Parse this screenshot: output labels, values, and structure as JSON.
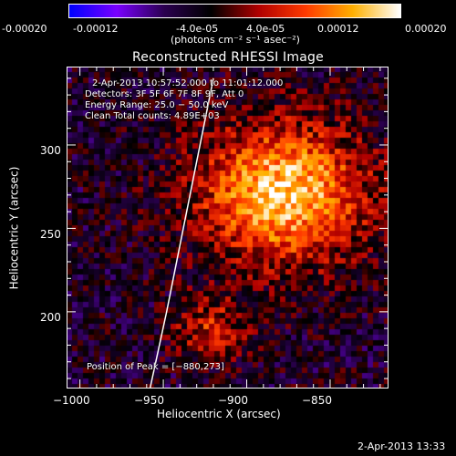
{
  "colorbar": {
    "ticks": [
      "-0.00020",
      "-0.00012",
      "-4.0e-05",
      "4.0e-05",
      "0.00012",
      "0.00020"
    ],
    "units_label": "(photons cm⁻² s⁻¹ asec⁻²)",
    "colors": [
      "#0000ff",
      "#7a00ff",
      "#2b0050",
      "#000000",
      "#b00000",
      "#ff3a00",
      "#ffb000",
      "#ffffff"
    ]
  },
  "plot": {
    "title": "Reconstructed RHESSI Image",
    "xlabel": "Heliocentric X (arcsec)",
    "ylabel": "Heliocentric Y (arcsec)",
    "xticks": [
      "−1000",
      "−950",
      "−900",
      "−850"
    ],
    "yticks": [
      "300",
      "250",
      "200"
    ],
    "xlim": [
      -1008,
      -815
    ],
    "ylim": [
      154,
      347
    ],
    "annotations": {
      "time_range": "2-Apr-2013 10:57:52.000 to 11:01:12.000",
      "detectors": "Detectors: 3F 5F 6F 7F 8F 9F, Att 0",
      "energy": "Energy Range: 25.0 − 50.0 keV",
      "algo": "Clean     Total counts: 4.89E+03",
      "peak": "Position of Peak = [−880,273]"
    },
    "peak": [
      -880,
      273
    ],
    "limb_points": [
      [
        -958,
        154
      ],
      [
        -948,
        200
      ],
      [
        -938,
        250
      ],
      [
        -928,
        300
      ],
      [
        -920,
        340
      ]
    ]
  },
  "footer": {
    "timestamp": "2-Apr-2013 13:33"
  }
}
